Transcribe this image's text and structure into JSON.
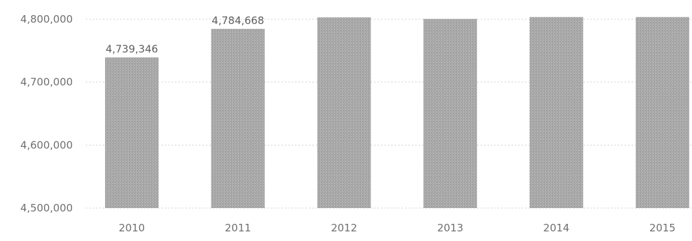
{
  "chart_data": {
    "type": "bar",
    "categories": [
      "2010",
      "2011",
      "2012",
      "2013",
      "2014",
      "2015"
    ],
    "values": [
      4739346,
      4784668,
      4803000,
      4800500,
      4803500,
      4803500
    ],
    "value_labels": [
      "4,739,346",
      "4,784,668",
      "",
      "",
      "",
      ""
    ],
    "ylim": [
      4500000,
      4800000
    ],
    "yticks": [
      4500000,
      4600000,
      4700000,
      4800000
    ],
    "ytick_labels": [
      "4,500,000",
      "4,600,000",
      "4,700,000",
      "4,800,000"
    ],
    "grid": true,
    "bar_color": "#a8a8a8",
    "gridline_color": "#cfcfcf",
    "title": "",
    "xlabel": "",
    "ylabel": ""
  }
}
